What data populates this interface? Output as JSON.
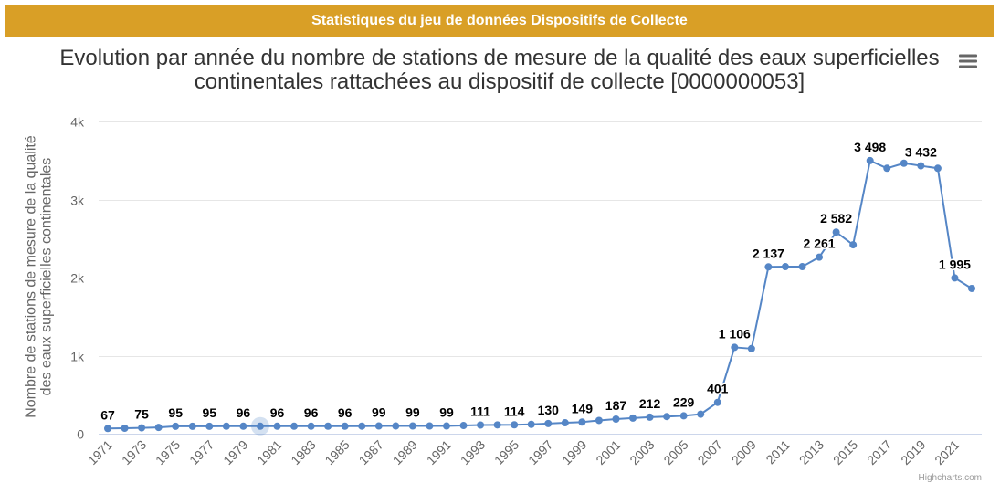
{
  "header": {
    "title": "Statistiques du jeu de données Dispositifs de Collecte",
    "background_color": "#d99f26",
    "text_color": "#ffffff"
  },
  "menu": {
    "icon": "hamburger-menu-icon"
  },
  "credits": {
    "text": "Highcharts.com"
  },
  "chart_data": {
    "type": "line",
    "title": "Evolution par année du nombre de stations de mesure de la qualité des eaux superficielles continentales rattachées au dispositif de collecte [0000000053]",
    "ylabel": "Nombre de stations de mesure de la qualité des eaux superficielles continentales",
    "x": [
      1971,
      1972,
      1973,
      1974,
      1975,
      1976,
      1977,
      1978,
      1979,
      1980,
      1981,
      1982,
      1983,
      1984,
      1985,
      1986,
      1987,
      1988,
      1989,
      1990,
      1991,
      1992,
      1993,
      1994,
      1995,
      1996,
      1997,
      1998,
      1999,
      2000,
      2001,
      2002,
      2003,
      2004,
      2005,
      2006,
      2007,
      2008,
      2009,
      2010,
      2011,
      2012,
      2013,
      2014,
      2015,
      2016,
      2017,
      2018,
      2019,
      2020,
      2021,
      2022
    ],
    "x_tick_labels": [
      "1971",
      "1973",
      "1975",
      "1977",
      "1979",
      "1981",
      "1983",
      "1985",
      "1987",
      "1989",
      "1991",
      "1993",
      "1995",
      "1997",
      "1999",
      "2001",
      "2003",
      "2005",
      "2007",
      "2009",
      "2011",
      "2013",
      "2015",
      "2017",
      "2019",
      "2021"
    ],
    "ylim": [
      0,
      4000
    ],
    "y_ticks": [
      0,
      1000,
      2000,
      3000,
      4000
    ],
    "y_tick_labels": [
      "0",
      "1k",
      "2k",
      "3k",
      "4k"
    ],
    "grid": true,
    "highlighted_x": 1980,
    "series": [
      {
        "color": "#5586c6",
        "values": [
          67,
          70,
          75,
          80,
          95,
          95,
          95,
          96,
          96,
          96,
          96,
          96,
          96,
          96,
          96,
          97,
          99,
          99,
          99,
          99,
          99,
          105,
          111,
          113,
          114,
          120,
          130,
          140,
          149,
          170,
          187,
          200,
          212,
          220,
          229,
          250,
          401,
          1106,
          1090,
          2137,
          2140,
          2140,
          2261,
          2582,
          2420,
          3498,
          3400,
          3465,
          3432,
          3400,
          1995,
          1860
        ],
        "data_labels": [
          "67",
          null,
          "75",
          null,
          "95",
          null,
          "95",
          null,
          "96",
          null,
          "96",
          null,
          "96",
          null,
          "96",
          null,
          "99",
          null,
          "99",
          null,
          "99",
          null,
          "111",
          null,
          "114",
          null,
          "130",
          null,
          "149",
          null,
          "187",
          null,
          "212",
          null,
          "229",
          null,
          "401",
          "1 106",
          null,
          "2 137",
          null,
          null,
          "2 261",
          "2 582",
          null,
          "3 498",
          null,
          null,
          "3 432",
          null,
          "1 995",
          null
        ]
      }
    ]
  }
}
